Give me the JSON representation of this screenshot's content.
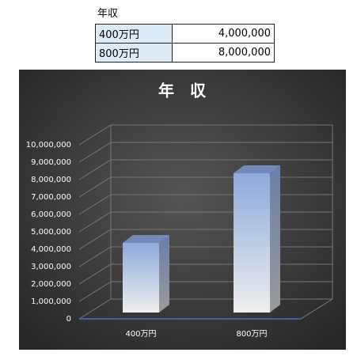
{
  "table": {
    "title": "年収",
    "rows": [
      [
        "400万円",
        "4,000,000"
      ],
      [
        "800万円",
        "8,000,000"
      ]
    ]
  },
  "chart_data": {
    "type": "bar3d",
    "title": "年　収",
    "categories": [
      "400万円",
      "800万円"
    ],
    "values": [
      4000000,
      8000000
    ],
    "color": "#8eaadb",
    "ylim": [
      0,
      10000000
    ],
    "yticks": [
      0,
      {
        "value": 1000000,
        "label": "1,000,000"
      },
      {
        "value": 2000000,
        "label": "2,000,000"
      },
      {
        "value": 3000000,
        "label": "3,000,000"
      },
      {
        "value": 4000000,
        "label": "4,000,000"
      },
      {
        "value": 5000000,
        "label": "5,000,000"
      },
      {
        "value": 6000000,
        "label": "6,000,000"
      },
      {
        "value": 7000000,
        "label": "7,000,000"
      },
      {
        "value": 8000000,
        "label": "8,000,000"
      },
      {
        "value": 9000000,
        "label": "9,000,000"
      },
      {
        "value": 10000000,
        "label": "10,000,000"
      }
    ],
    "grid": true
  }
}
